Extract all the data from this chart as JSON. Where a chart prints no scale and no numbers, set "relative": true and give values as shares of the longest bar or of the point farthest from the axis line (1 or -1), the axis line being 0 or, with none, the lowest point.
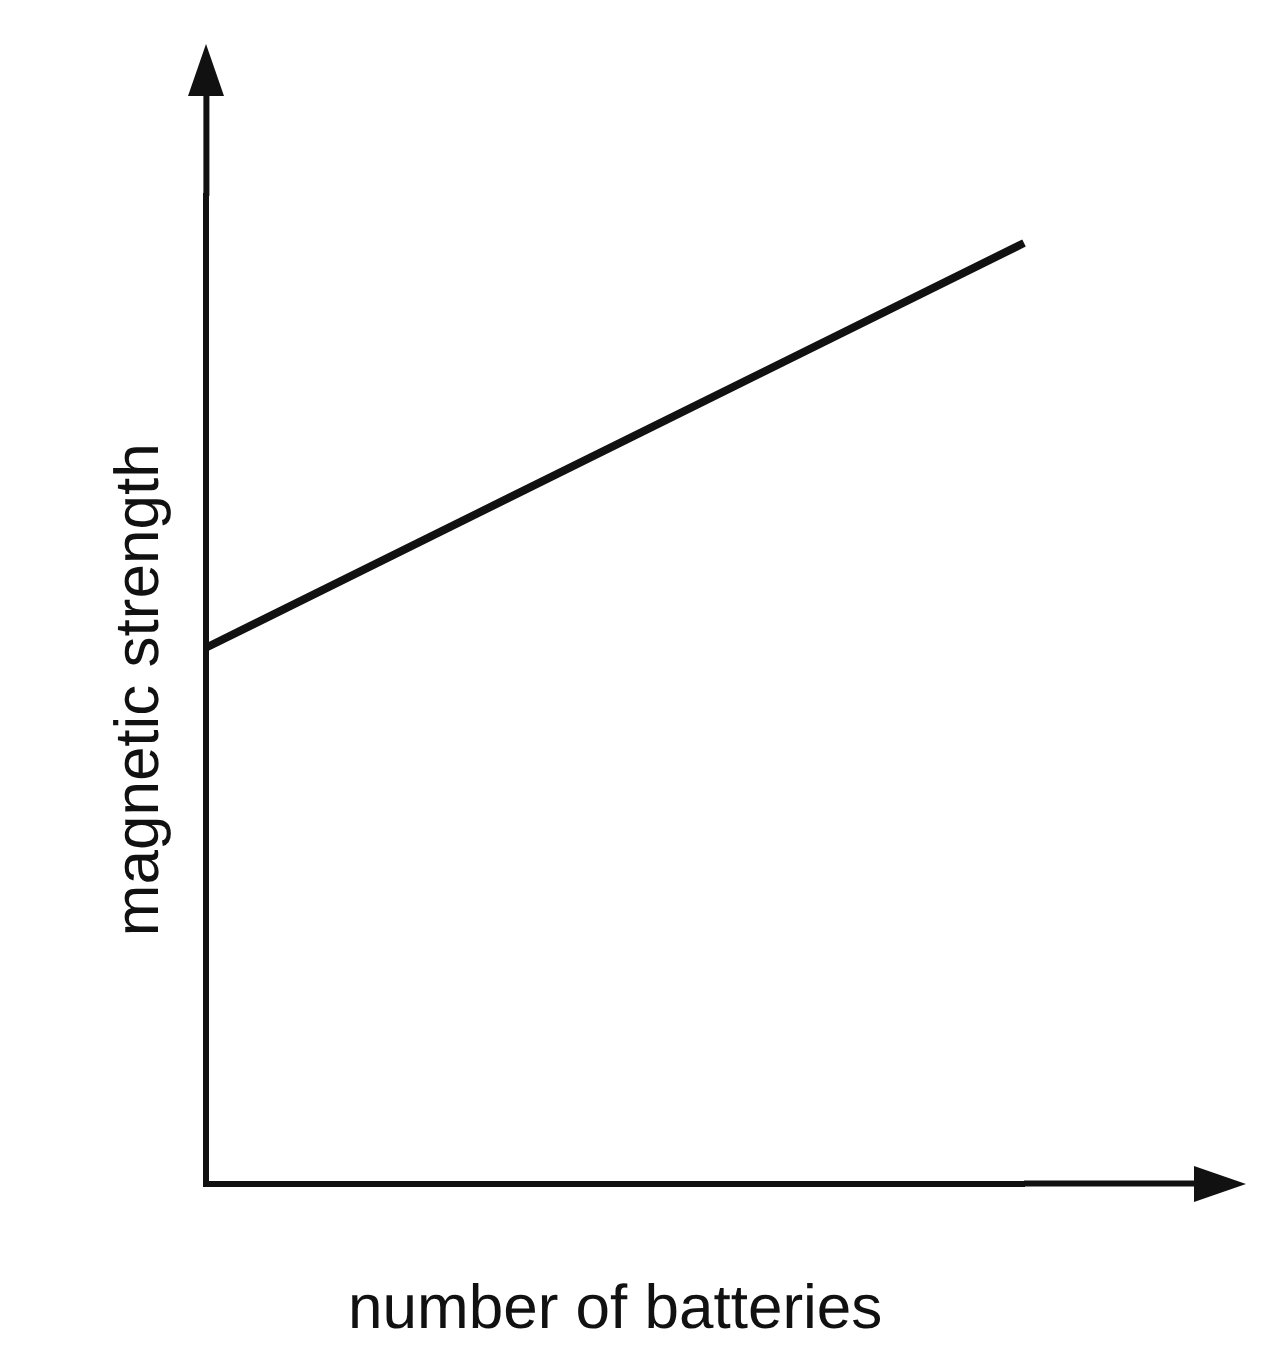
{
  "chart_data": {
    "type": "line",
    "xlabel": "number of batteries",
    "ylabel": "magnetic strength",
    "categories": [
      null,
      null
    ],
    "relative": true,
    "series": [
      {
        "color": "#111111",
        "values": [
          0.57,
          1
        ]
      }
    ],
    "tick_labels": false,
    "grid": false,
    "legend": false,
    "marker": "none",
    "line_style": "solid"
  }
}
